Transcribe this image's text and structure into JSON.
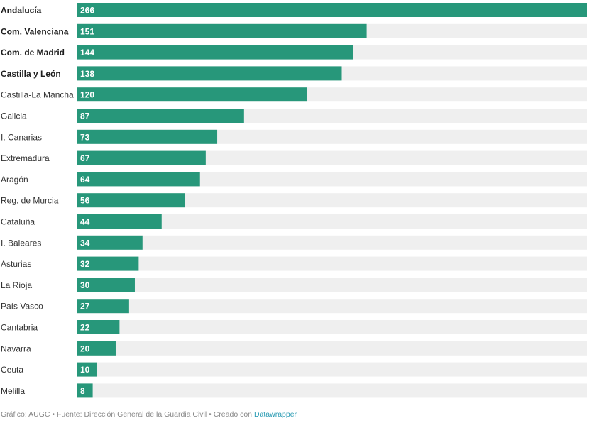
{
  "colors": {
    "bar": "#27977a",
    "track": "#efefef"
  },
  "chart_data": {
    "type": "bar",
    "orientation": "horizontal",
    "categories": [
      "Andalucía",
      "Com. Valenciana",
      "Com. de Madrid",
      "Castilla y León",
      "Castilla-La Mancha",
      "Galicia",
      "I. Canarias",
      "Extremadura",
      "Aragón",
      "Reg. de Murcia",
      "Cataluña",
      "I. Baleares",
      "Asturias",
      "La Rioja",
      "País Vasco",
      "Cantabria",
      "Navarra",
      "Ceuta",
      "Melilla"
    ],
    "values": [
      266,
      151,
      144,
      138,
      120,
      87,
      73,
      67,
      64,
      56,
      44,
      34,
      32,
      30,
      27,
      22,
      20,
      10,
      8
    ],
    "bold_categories": [
      "Andalucía",
      "Com. Valenciana",
      "Com. de Madrid",
      "Castilla y León"
    ],
    "xlim": [
      0,
      266
    ],
    "value_labels": "inside-bar-start",
    "grid": false
  },
  "footer": {
    "text": "Gráfico: AUGC • Fuente: Dirección General de la Guardia Civil • Creado con ",
    "link": "Datawrapper"
  }
}
